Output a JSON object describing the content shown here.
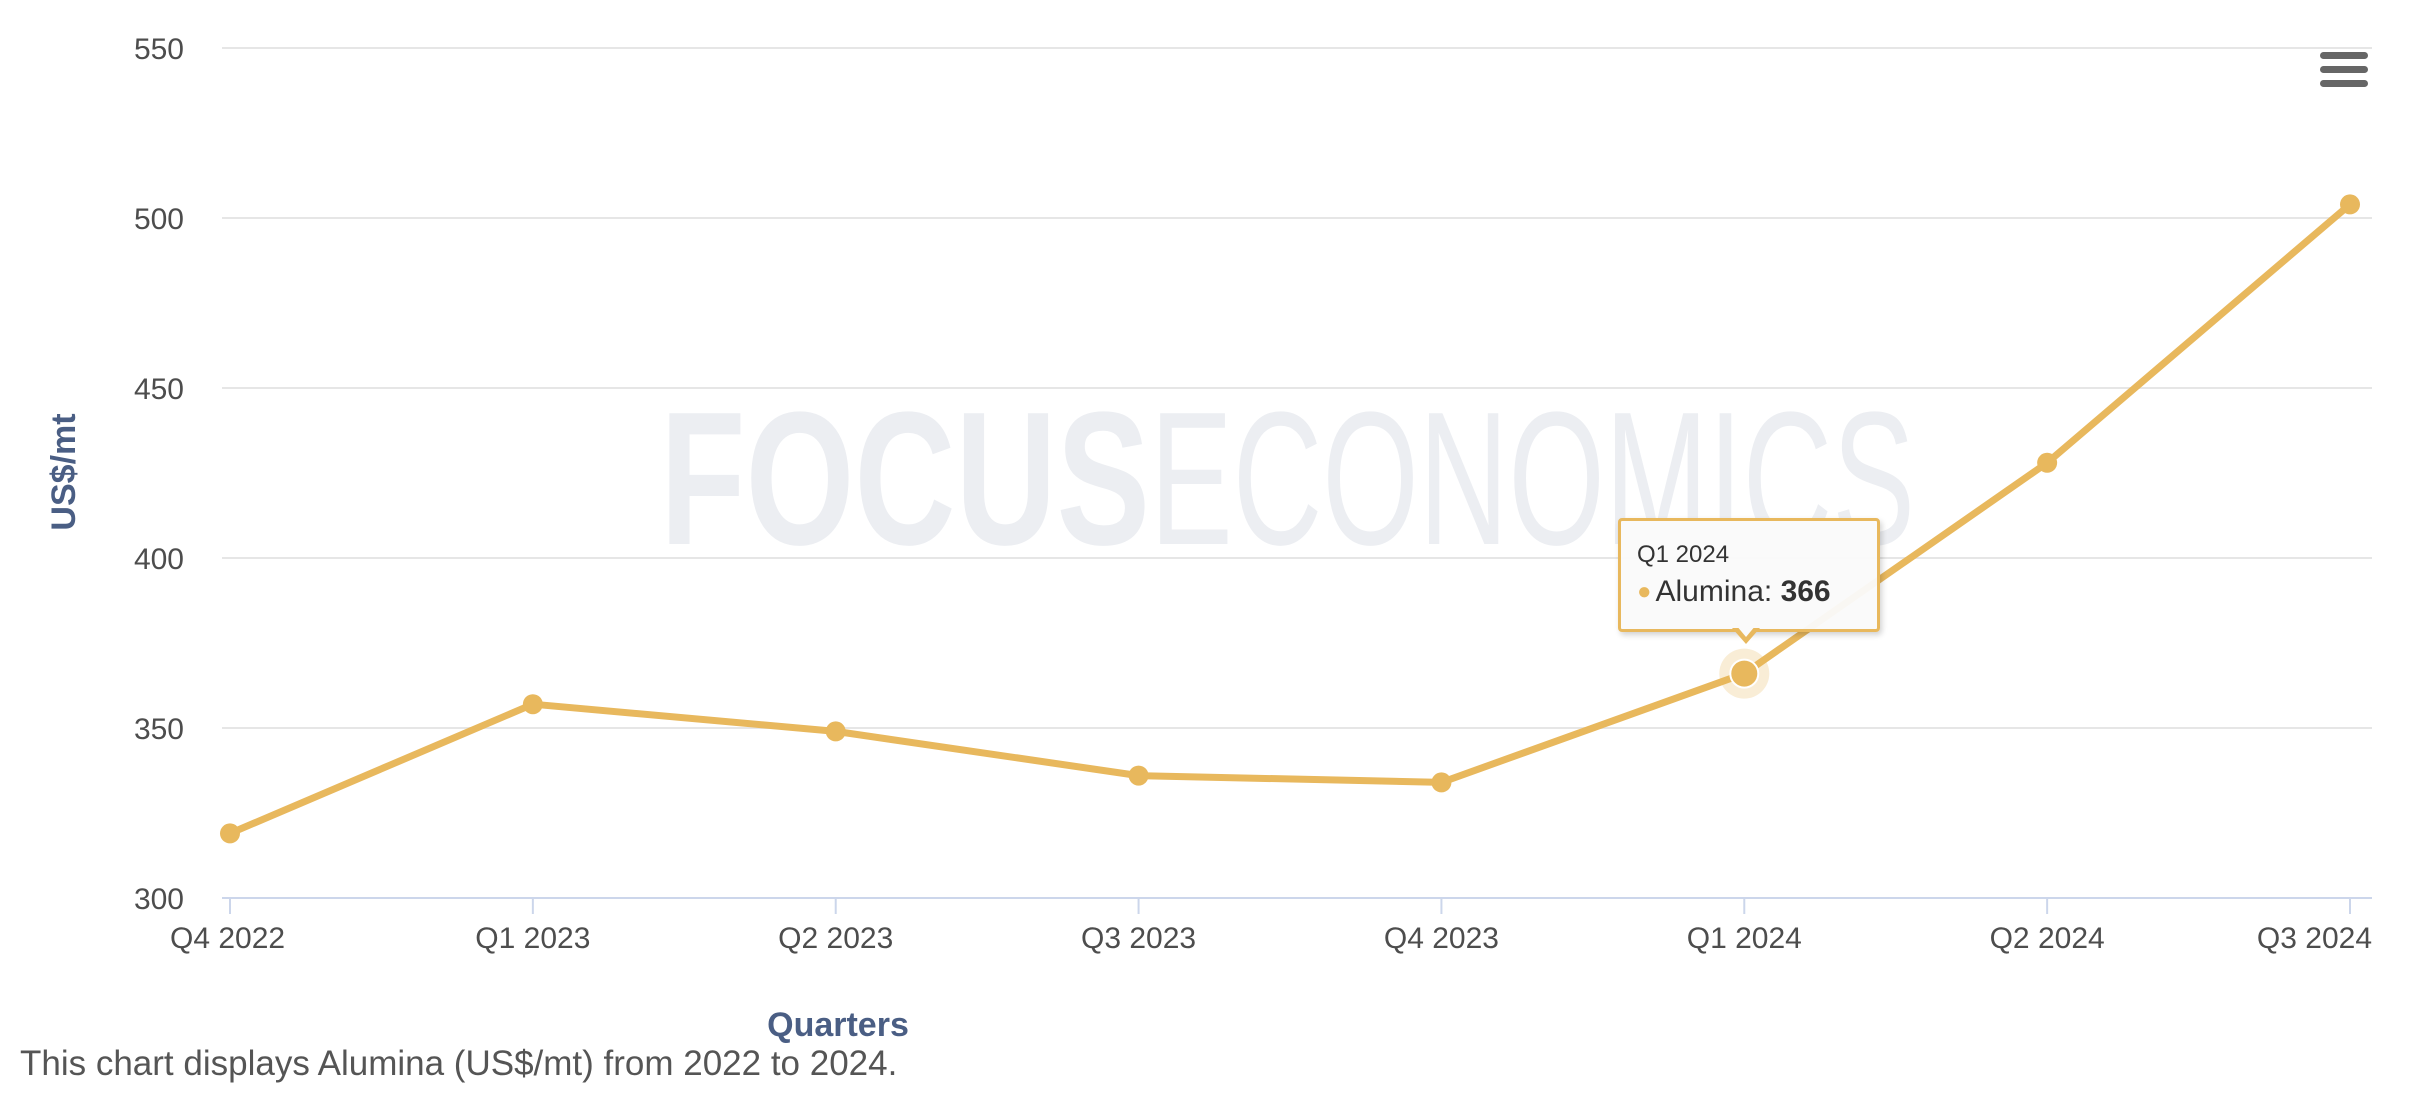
{
  "chart_data": {
    "type": "line",
    "categories": [
      "Q4 2022",
      "Q1 2023",
      "Q2 2023",
      "Q3 2023",
      "Q4 2023",
      "Q1 2024",
      "Q2 2024",
      "Q3 2024"
    ],
    "series": [
      {
        "name": "Alumina",
        "values": [
          319,
          357,
          349,
          336,
          334,
          366,
          428,
          504
        ],
        "color": "#e8b85d"
      }
    ],
    "xlabel": "Quarters",
    "ylabel": "US$/mt",
    "ylim": [
      300,
      550
    ],
    "yticks": [
      300,
      350,
      400,
      450,
      500,
      550
    ],
    "grid": true,
    "watermark": {
      "bold": "FOCUS",
      "light": "ECONOMICS"
    },
    "tooltip": {
      "category": "Q1 2024",
      "series": "Alumina",
      "label": "Alumina: ",
      "value": "366"
    }
  },
  "toolbar": {
    "menu_icon": "hamburger-menu-icon"
  },
  "caption": "This chart displays Alumina (US$/mt) from 2022 to 2024."
}
